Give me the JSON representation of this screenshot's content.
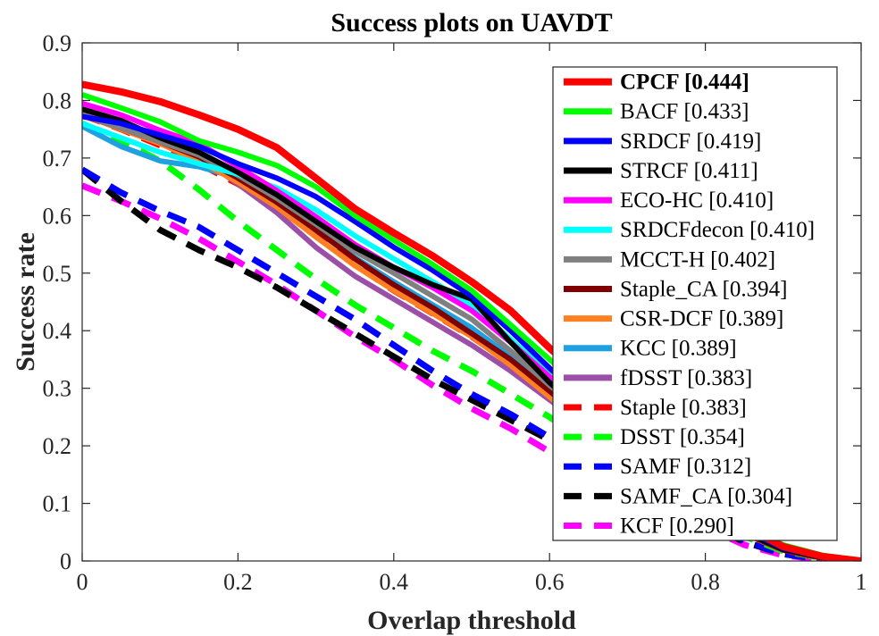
{
  "chart_data": {
    "type": "line",
    "title": "Success plots on UAVDT",
    "xlabel": "Overlap threshold",
    "ylabel": "Success rate",
    "xlim": [
      0,
      1
    ],
    "ylim": [
      0,
      0.9
    ],
    "xticks": [
      "0",
      "0.2",
      "0.4",
      "0.6",
      "0.8",
      "1"
    ],
    "yticks": [
      "0",
      "0.1",
      "0.2",
      "0.3",
      "0.4",
      "0.5",
      "0.6",
      "0.7",
      "0.8",
      "0.9"
    ],
    "grid": false,
    "legend_position": "right",
    "x": [
      0,
      0.05,
      0.1,
      0.15,
      0.2,
      0.25,
      0.3,
      0.35,
      0.4,
      0.45,
      0.5,
      0.55,
      0.6,
      0.65,
      0.7,
      0.75,
      0.8,
      0.85,
      0.9,
      0.95,
      1
    ],
    "series": [
      {
        "name": "CPCF [0.444]",
        "color": "#ff0000",
        "dash": false,
        "bold": true,
        "values": [
          0.828,
          0.815,
          0.798,
          0.775,
          0.75,
          0.718,
          0.665,
          0.612,
          0.57,
          0.53,
          0.485,
          0.435,
          0.37,
          0.31,
          0.245,
          0.18,
          0.115,
          0.06,
          0.025,
          0.008,
          0.0
        ]
      },
      {
        "name": "BACF [0.433]",
        "color": "#00ff00",
        "dash": false,
        "values": [
          0.81,
          0.787,
          0.763,
          0.73,
          0.71,
          0.687,
          0.65,
          0.6,
          0.557,
          0.515,
          0.47,
          0.41,
          0.35,
          0.29,
          0.23,
          0.17,
          0.11,
          0.06,
          0.028,
          0.01,
          0.001
        ]
      },
      {
        "name": "SRDCF [0.419]",
        "color": "#0000ff",
        "dash": false,
        "values": [
          0.772,
          0.76,
          0.74,
          0.72,
          0.69,
          0.665,
          0.633,
          0.59,
          0.545,
          0.505,
          0.46,
          0.4,
          0.335,
          0.275,
          0.215,
          0.16,
          0.105,
          0.055,
          0.022,
          0.007,
          0.0
        ]
      },
      {
        "name": "STRCF [0.411]",
        "color": "#000000",
        "dash": false,
        "values": [
          0.785,
          0.765,
          0.735,
          0.71,
          0.675,
          0.636,
          0.59,
          0.545,
          0.51,
          0.48,
          0.455,
          0.38,
          0.31,
          0.25,
          0.195,
          0.145,
          0.095,
          0.05,
          0.02,
          0.006,
          0.0
        ]
      },
      {
        "name": "ECO-HC [0.410]",
        "color": "#ff00ff",
        "dash": false,
        "values": [
          0.795,
          0.775,
          0.748,
          0.725,
          0.685,
          0.643,
          0.598,
          0.55,
          0.51,
          0.475,
          0.435,
          0.38,
          0.32,
          0.26,
          0.2,
          0.15,
          0.1,
          0.052,
          0.021,
          0.006,
          0.0
        ]
      },
      {
        "name": "SRDCFdecon [0.410]",
        "color": "#00ffff",
        "dash": false,
        "values": [
          0.76,
          0.735,
          0.71,
          0.69,
          0.672,
          0.648,
          0.61,
          0.565,
          0.525,
          0.485,
          0.445,
          0.385,
          0.325,
          0.265,
          0.205,
          0.155,
          0.1,
          0.052,
          0.021,
          0.006,
          0.0
        ]
      },
      {
        "name": "MCCT-H [0.402]",
        "color": "#808080",
        "dash": false,
        "values": [
          0.775,
          0.752,
          0.728,
          0.705,
          0.67,
          0.63,
          0.585,
          0.538,
          0.5,
          0.46,
          0.42,
          0.365,
          0.305,
          0.25,
          0.195,
          0.145,
          0.095,
          0.05,
          0.02,
          0.006,
          0.0
        ]
      },
      {
        "name": "Staple_CA [0.394]",
        "color": "#800000",
        "dash": false,
        "values": [
          0.775,
          0.752,
          0.728,
          0.702,
          0.665,
          0.623,
          0.575,
          0.525,
          0.48,
          0.44,
          0.395,
          0.35,
          0.295,
          0.24,
          0.19,
          0.14,
          0.09,
          0.048,
          0.019,
          0.005,
          0.0
        ]
      },
      {
        "name": "CSR-DCF [0.389]",
        "color": "#ff8020",
        "dash": false,
        "values": [
          0.775,
          0.75,
          0.725,
          0.695,
          0.658,
          0.615,
          0.563,
          0.513,
          0.47,
          0.43,
          0.39,
          0.34,
          0.285,
          0.23,
          0.18,
          0.135,
          0.088,
          0.047,
          0.019,
          0.005,
          0.0
        ]
      },
      {
        "name": "KCC [0.389]",
        "color": "#1fa0e0",
        "dash": false,
        "values": [
          0.755,
          0.72,
          0.695,
          0.685,
          0.665,
          0.625,
          0.575,
          0.527,
          0.485,
          0.445,
          0.405,
          0.355,
          0.3,
          0.245,
          0.19,
          0.14,
          0.09,
          0.048,
          0.019,
          0.005,
          0.0
        ]
      },
      {
        "name": "fDSST [0.383]",
        "color": "#9b4fa8",
        "dash": false,
        "values": [
          0.78,
          0.76,
          0.735,
          0.702,
          0.655,
          0.605,
          0.545,
          0.495,
          0.455,
          0.415,
          0.375,
          0.33,
          0.28,
          0.23,
          0.18,
          0.135,
          0.088,
          0.047,
          0.019,
          0.005,
          0.0
        ]
      },
      {
        "name": "Staple [0.383]",
        "color": "#ff0000",
        "dash": true,
        "values": [
          0.775,
          0.75,
          0.722,
          0.69,
          0.655,
          0.615,
          0.565,
          0.515,
          0.47,
          0.43,
          0.39,
          0.343,
          0.29,
          0.235,
          0.185,
          0.137,
          0.09,
          0.048,
          0.019,
          0.005,
          0.0
        ]
      },
      {
        "name": "DSST [0.354]",
        "color": "#00ff00",
        "dash": true,
        "values": [
          0.76,
          0.73,
          0.695,
          0.645,
          0.59,
          0.54,
          0.49,
          0.445,
          0.405,
          0.365,
          0.33,
          0.29,
          0.25,
          0.205,
          0.162,
          0.12,
          0.08,
          0.043,
          0.017,
          0.005,
          0.0
        ]
      },
      {
        "name": "SAMF [0.312]",
        "color": "#0000ff",
        "dash": true,
        "values": [
          0.68,
          0.64,
          0.608,
          0.58,
          0.54,
          0.5,
          0.46,
          0.42,
          0.375,
          0.33,
          0.29,
          0.255,
          0.215,
          0.175,
          0.14,
          0.105,
          0.07,
          0.035,
          0.012,
          0.003,
          0.0
        ]
      },
      {
        "name": "SAMF_CA [0.304]",
        "color": "#000000",
        "dash": true,
        "values": [
          0.68,
          0.625,
          0.575,
          0.54,
          0.51,
          0.475,
          0.435,
          0.395,
          0.355,
          0.315,
          0.28,
          0.245,
          0.21,
          0.17,
          0.135,
          0.1,
          0.065,
          0.033,
          0.012,
          0.003,
          0.0
        ]
      },
      {
        "name": "KCF [0.290]",
        "color": "#ff00ff",
        "dash": true,
        "values": [
          0.652,
          0.625,
          0.595,
          0.56,
          0.52,
          0.48,
          0.435,
          0.39,
          0.35,
          0.305,
          0.265,
          0.23,
          0.19,
          0.155,
          0.12,
          0.09,
          0.058,
          0.028,
          0.01,
          0.002,
          0.0
        ]
      }
    ]
  }
}
